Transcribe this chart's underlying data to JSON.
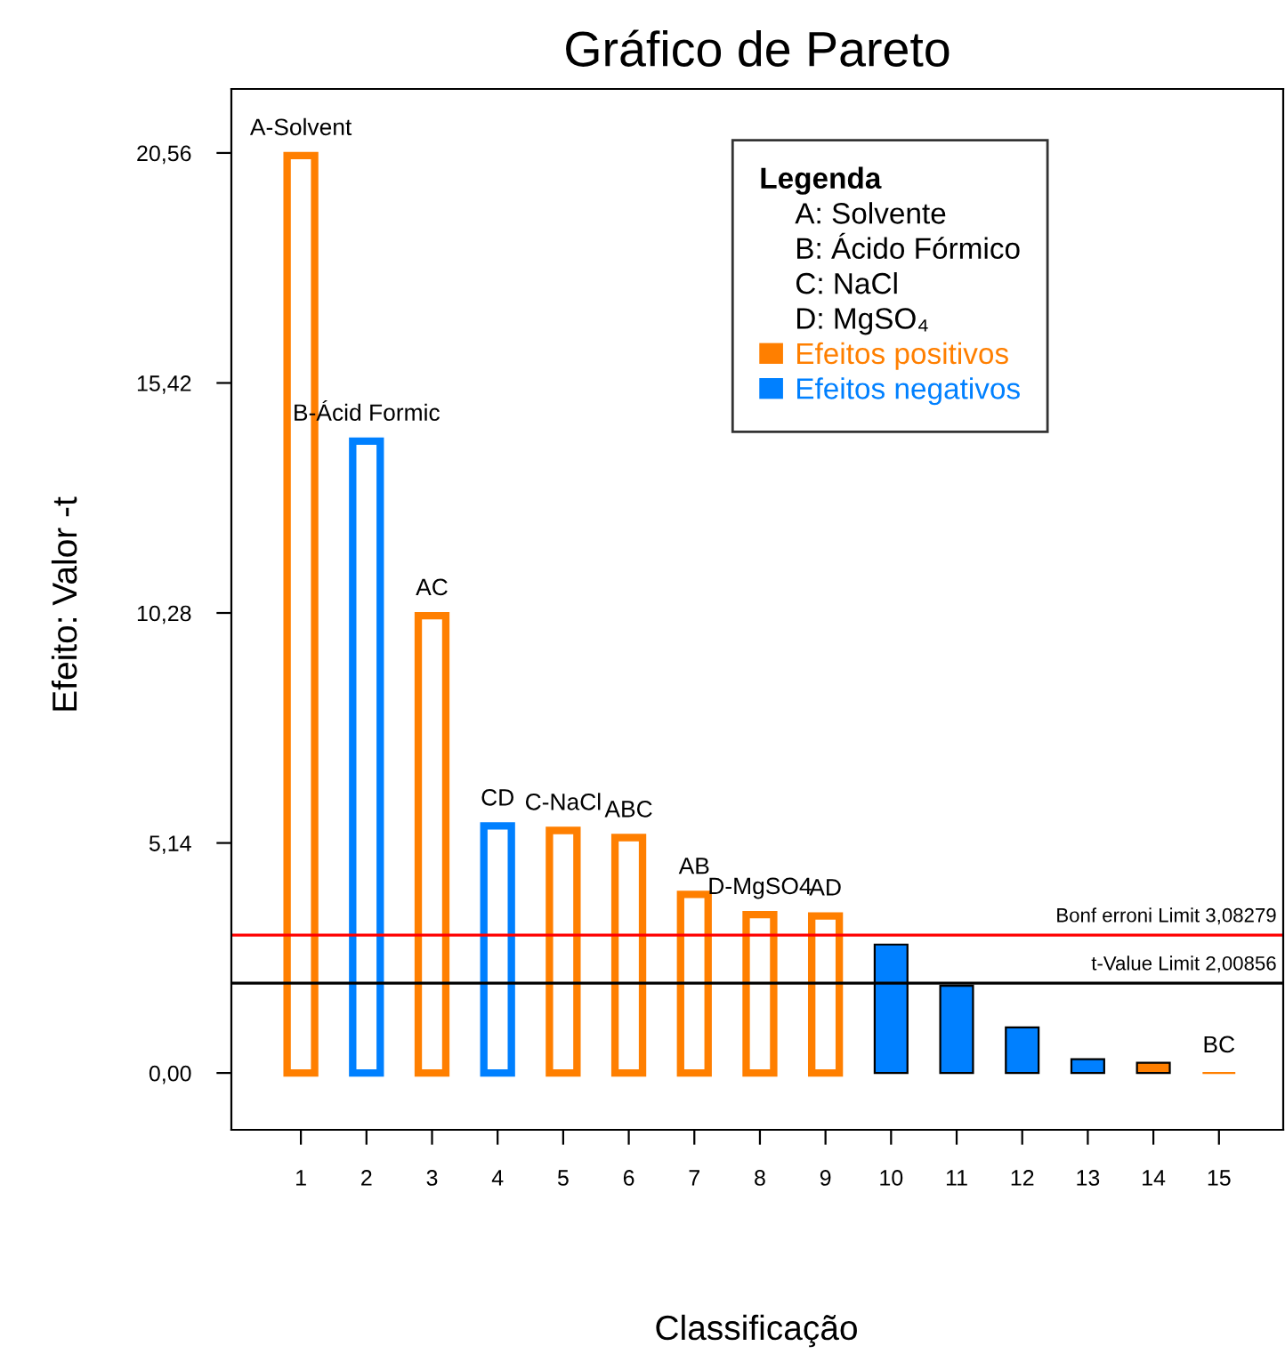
{
  "chart_data": {
    "type": "bar",
    "title": "Gráfico de Pareto",
    "xlabel": "Classificação",
    "ylabel": "Efeito: Valor -t",
    "legend_title": "Legenda",
    "categories": [
      "1",
      "2",
      "3",
      "4",
      "5",
      "6",
      "7",
      "8",
      "9",
      "10",
      "11",
      "12",
      "13",
      "14",
      "15"
    ],
    "series": [
      {
        "name": "Efeitos positivos",
        "color": "#ff7f00",
        "values": [
          20.5,
          null,
          10.22,
          null,
          5.42,
          5.26,
          3.99,
          3.54,
          3.51,
          null,
          null,
          null,
          null,
          0.23,
          0
        ]
      },
      {
        "name": "Efeitos negativos",
        "color": "#0080ff",
        "values": [
          null,
          14.12,
          null,
          5.52,
          null,
          null,
          null,
          null,
          null,
          2.87,
          1.95,
          1.02,
          0.31,
          null,
          null
        ]
      }
    ],
    "ylim": [
      -1.27,
      21.99
    ],
    "yticks": [
      {
        "value": 0,
        "label": "0,00"
      },
      {
        "value": 5.14,
        "label": "5,14"
      },
      {
        "value": 10.28,
        "label": "10,28"
      },
      {
        "value": 15.42,
        "label": "15,42"
      },
      {
        "value": 20.56,
        "label": "20,56"
      }
    ],
    "ref_lines": [
      {
        "axis": "y",
        "value": 3.08279,
        "label": "Bonf erroni Limit 3,08279",
        "color": "#ff0000"
      },
      {
        "axis": "y",
        "value": 2.00856,
        "label": "t-Value Limit 2,00856",
        "color": "#000000"
      }
    ],
    "annotations": [
      "A-Solvent",
      "B-Ácid Formic",
      "AC",
      "CD",
      "C-NaCl",
      "ABC",
      "AB",
      "D-MgSO4",
      "AD",
      "BC",
      "A: Solvente",
      "B: Ácido Fórmico",
      "C: NaCl",
      "D: MgSO₄"
    ],
    "legend": "top right",
    "grid": false
  }
}
